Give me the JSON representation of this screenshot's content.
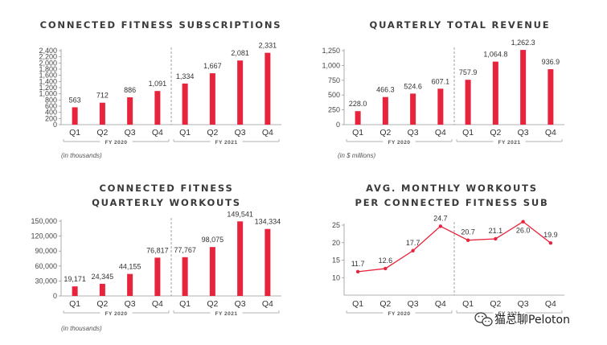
{
  "colors": {
    "bar": "#e8233c",
    "line": "#e8233c",
    "axis": "#999999",
    "divider": "#888888",
    "text": "#333333"
  },
  "watermark": {
    "icon": "wechat-icon",
    "text": "猫总聊Peloton"
  },
  "chart_data": [
    {
      "type": "bar",
      "title": "CONNECTED FITNESS SUBSCRIPTIONS",
      "note": "(in thousands)",
      "categories": [
        "Q1",
        "Q2",
        "Q3",
        "Q4",
        "Q1",
        "Q2",
        "Q3",
        "Q4"
      ],
      "groups": [
        "FY 2020",
        "FY 2021"
      ],
      "values": [
        563,
        712,
        886,
        1091,
        1334,
        1667,
        2081,
        2331
      ],
      "labels": [
        "563",
        "712",
        "886",
        "1,091",
        "1,334",
        "1,667",
        "2,081",
        "2,331"
      ],
      "ylim": [
        0,
        2400
      ],
      "yticks": [
        "0",
        "200",
        "400",
        "600",
        "800",
        "1,000",
        "1,200",
        "1,400",
        "1,600",
        "1,800",
        "2,000",
        "2,200",
        "2,400"
      ]
    },
    {
      "type": "bar",
      "title": "QUARTERLY TOTAL REVENUE",
      "note": "(in $ millions)",
      "categories": [
        "Q1",
        "Q2",
        "Q3",
        "Q4",
        "Q1",
        "Q2",
        "Q3",
        "Q4"
      ],
      "groups": [
        "FY 2020",
        "FY 2021"
      ],
      "values": [
        228.0,
        466.3,
        524.6,
        607.1,
        757.9,
        1064.8,
        1262.3,
        936.9
      ],
      "labels": [
        "228.0",
        "466.3",
        "524.6",
        "607.1",
        "757.9",
        "1,064.8",
        "1,262.3",
        "936.9"
      ],
      "ylim": [
        0,
        1250
      ],
      "yticks": [
        "0",
        "250",
        "500",
        "750",
        "1,000",
        "1,250"
      ]
    },
    {
      "type": "bar",
      "title": [
        "CONNECTED FITNESS",
        "QUARTERLY WORKOUTS"
      ],
      "note": "(in thousands)",
      "categories": [
        "Q1",
        "Q2",
        "Q3",
        "Q4",
        "Q1",
        "Q2",
        "Q3",
        "Q4"
      ],
      "groups": [
        "FY 2020",
        "FY 2021"
      ],
      "values": [
        19171,
        24345,
        44155,
        76817,
        77767,
        98075,
        149541,
        134334
      ],
      "labels": [
        "19,171",
        "24,345",
        "44,155",
        "76,817",
        "77,767",
        "98,075",
        "149,541",
        "134,334"
      ],
      "ylim": [
        0,
        150000
      ],
      "yticks": [
        "0",
        "30,000",
        "60,000",
        "90,000",
        "120,000",
        "150,000"
      ]
    },
    {
      "type": "line",
      "title": [
        "AVG. MONTHLY WORKOUTS",
        "PER CONNECTED FITNESS SUB"
      ],
      "note": "",
      "categories": [
        "Q1",
        "Q2",
        "Q3",
        "Q4",
        "Q1",
        "Q2",
        "Q3",
        "Q4"
      ],
      "groups": [
        "FY 2020",
        "FY 2021"
      ],
      "values": [
        11.7,
        12.6,
        17.7,
        24.7,
        20.7,
        21.1,
        26.0,
        19.9
      ],
      "labels": [
        "11.7",
        "12.6",
        "17.7",
        "24.7",
        "20.7",
        "21.1",
        "26.0",
        "19.9"
      ],
      "ylim": [
        5,
        25
      ],
      "yticks": [
        "10",
        "15",
        "20",
        "25"
      ]
    }
  ]
}
